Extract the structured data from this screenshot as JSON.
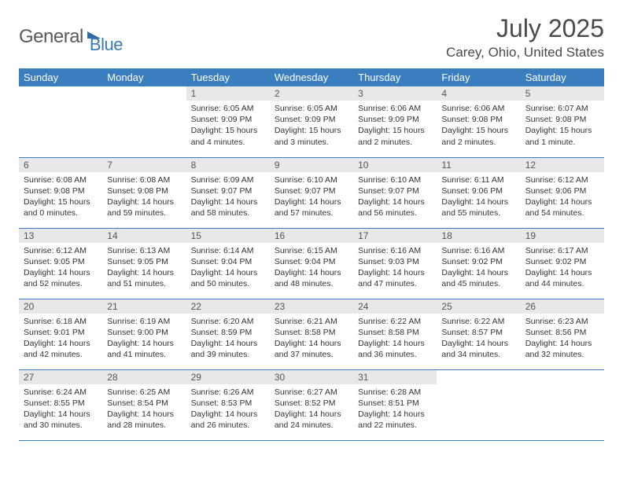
{
  "logo": {
    "text1": "General",
    "text2": "Blue"
  },
  "title": "July 2025",
  "location": "Carey, Ohio, United States",
  "colors": {
    "header_bg": "#3a7ebf",
    "header_text": "#ffffff",
    "daynum_bg": "#e8e8e8",
    "border": "#3a7ebf",
    "body_text": "#333333",
    "logo_gray": "#5a5a5a",
    "logo_blue": "#3a7ab8"
  },
  "weekdays": [
    "Sunday",
    "Monday",
    "Tuesday",
    "Wednesday",
    "Thursday",
    "Friday",
    "Saturday"
  ],
  "weeks": [
    [
      null,
      null,
      {
        "n": "1",
        "sunrise": "6:05 AM",
        "sunset": "9:09 PM",
        "dl": "15 hours and 4 minutes."
      },
      {
        "n": "2",
        "sunrise": "6:05 AM",
        "sunset": "9:09 PM",
        "dl": "15 hours and 3 minutes."
      },
      {
        "n": "3",
        "sunrise": "6:06 AM",
        "sunset": "9:09 PM",
        "dl": "15 hours and 2 minutes."
      },
      {
        "n": "4",
        "sunrise": "6:06 AM",
        "sunset": "9:08 PM",
        "dl": "15 hours and 2 minutes."
      },
      {
        "n": "5",
        "sunrise": "6:07 AM",
        "sunset": "9:08 PM",
        "dl": "15 hours and 1 minute."
      }
    ],
    [
      {
        "n": "6",
        "sunrise": "6:08 AM",
        "sunset": "9:08 PM",
        "dl": "15 hours and 0 minutes."
      },
      {
        "n": "7",
        "sunrise": "6:08 AM",
        "sunset": "9:08 PM",
        "dl": "14 hours and 59 minutes."
      },
      {
        "n": "8",
        "sunrise": "6:09 AM",
        "sunset": "9:07 PM",
        "dl": "14 hours and 58 minutes."
      },
      {
        "n": "9",
        "sunrise": "6:10 AM",
        "sunset": "9:07 PM",
        "dl": "14 hours and 57 minutes."
      },
      {
        "n": "10",
        "sunrise": "6:10 AM",
        "sunset": "9:07 PM",
        "dl": "14 hours and 56 minutes."
      },
      {
        "n": "11",
        "sunrise": "6:11 AM",
        "sunset": "9:06 PM",
        "dl": "14 hours and 55 minutes."
      },
      {
        "n": "12",
        "sunrise": "6:12 AM",
        "sunset": "9:06 PM",
        "dl": "14 hours and 54 minutes."
      }
    ],
    [
      {
        "n": "13",
        "sunrise": "6:12 AM",
        "sunset": "9:05 PM",
        "dl": "14 hours and 52 minutes."
      },
      {
        "n": "14",
        "sunrise": "6:13 AM",
        "sunset": "9:05 PM",
        "dl": "14 hours and 51 minutes."
      },
      {
        "n": "15",
        "sunrise": "6:14 AM",
        "sunset": "9:04 PM",
        "dl": "14 hours and 50 minutes."
      },
      {
        "n": "16",
        "sunrise": "6:15 AM",
        "sunset": "9:04 PM",
        "dl": "14 hours and 48 minutes."
      },
      {
        "n": "17",
        "sunrise": "6:16 AM",
        "sunset": "9:03 PM",
        "dl": "14 hours and 47 minutes."
      },
      {
        "n": "18",
        "sunrise": "6:16 AM",
        "sunset": "9:02 PM",
        "dl": "14 hours and 45 minutes."
      },
      {
        "n": "19",
        "sunrise": "6:17 AM",
        "sunset": "9:02 PM",
        "dl": "14 hours and 44 minutes."
      }
    ],
    [
      {
        "n": "20",
        "sunrise": "6:18 AM",
        "sunset": "9:01 PM",
        "dl": "14 hours and 42 minutes."
      },
      {
        "n": "21",
        "sunrise": "6:19 AM",
        "sunset": "9:00 PM",
        "dl": "14 hours and 41 minutes."
      },
      {
        "n": "22",
        "sunrise": "6:20 AM",
        "sunset": "8:59 PM",
        "dl": "14 hours and 39 minutes."
      },
      {
        "n": "23",
        "sunrise": "6:21 AM",
        "sunset": "8:58 PM",
        "dl": "14 hours and 37 minutes."
      },
      {
        "n": "24",
        "sunrise": "6:22 AM",
        "sunset": "8:58 PM",
        "dl": "14 hours and 36 minutes."
      },
      {
        "n": "25",
        "sunrise": "6:22 AM",
        "sunset": "8:57 PM",
        "dl": "14 hours and 34 minutes."
      },
      {
        "n": "26",
        "sunrise": "6:23 AM",
        "sunset": "8:56 PM",
        "dl": "14 hours and 32 minutes."
      }
    ],
    [
      {
        "n": "27",
        "sunrise": "6:24 AM",
        "sunset": "8:55 PM",
        "dl": "14 hours and 30 minutes."
      },
      {
        "n": "28",
        "sunrise": "6:25 AM",
        "sunset": "8:54 PM",
        "dl": "14 hours and 28 minutes."
      },
      {
        "n": "29",
        "sunrise": "6:26 AM",
        "sunset": "8:53 PM",
        "dl": "14 hours and 26 minutes."
      },
      {
        "n": "30",
        "sunrise": "6:27 AM",
        "sunset": "8:52 PM",
        "dl": "14 hours and 24 minutes."
      },
      {
        "n": "31",
        "sunrise": "6:28 AM",
        "sunset": "8:51 PM",
        "dl": "14 hours and 22 minutes."
      },
      null,
      null
    ]
  ],
  "labels": {
    "sunrise": "Sunrise:",
    "sunset": "Sunset:",
    "daylight": "Daylight:"
  }
}
